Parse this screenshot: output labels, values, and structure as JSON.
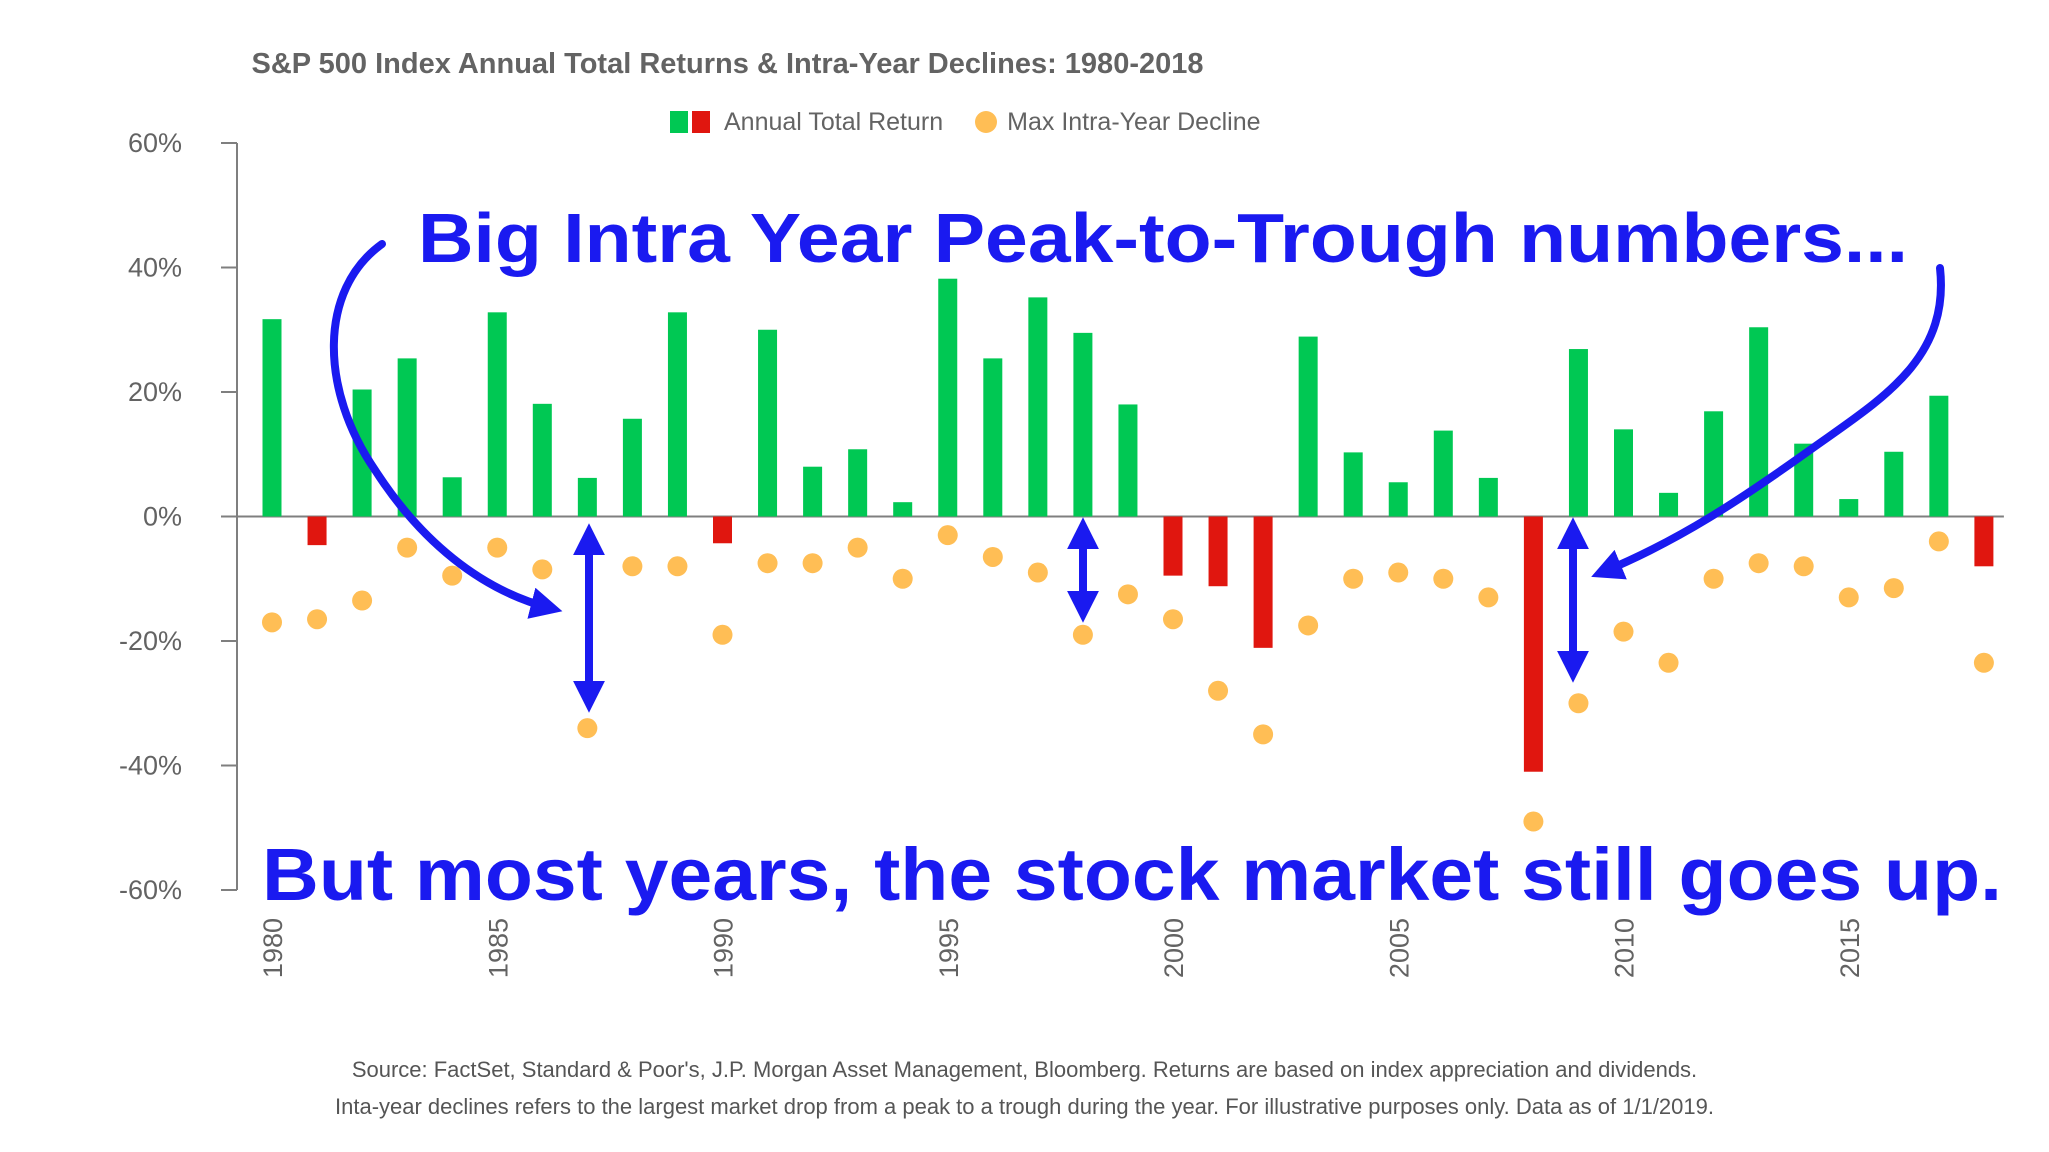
{
  "colors": {
    "positive_bar": "#00C853",
    "negative_bar": "#E0160F",
    "decline_dot": "#FFBE55",
    "annotation": "#1A1AF0",
    "axis": "#7F7F7F",
    "text": "#636363"
  },
  "annotations": {
    "top": "Big Intra Year Peak-to-Trough numbers...",
    "bottom": "But most years, the stock market still goes up."
  },
  "footer": {
    "line1": "Source: FactSet, Standard & Poor's, J.P. Morgan Asset Management, Bloomberg. Returns are based on index appreciation and dividends.",
    "line2": "Inta-year declines refers to the largest market drop from a peak to a trough during the year. For illustrative purposes only. Data as of 1/1/2019."
  },
  "chart_data": {
    "type": "bar",
    "title": "S&P 500 Index Annual Total Returns & Intra-Year Declines: 1980-2018",
    "legend": {
      "bar_label": "Annual Total Return",
      "dot_label": "Max Intra-Year Decline",
      "placement": "top-center"
    },
    "ylim": [
      -60,
      60
    ],
    "yticks": [
      60,
      40,
      20,
      0,
      -20,
      -40,
      -60
    ],
    "ytick_labels": [
      "60%",
      "40%",
      "20%",
      "0%",
      "-20%",
      "-40%",
      "-60%"
    ],
    "xtick_labels": [
      "1980",
      "1985",
      "1990",
      "1995",
      "2000",
      "2005",
      "2010",
      "2015"
    ],
    "grid": false,
    "categories": [
      "1980",
      "1981",
      "1982",
      "1983",
      "1984",
      "1985",
      "1986",
      "1987",
      "1988",
      "1989",
      "1990",
      "1991",
      "1992",
      "1993",
      "1994",
      "1995",
      "1996",
      "1997",
      "1998",
      "1999",
      "2000",
      "2001",
      "2002",
      "2003",
      "2004",
      "2005",
      "2006",
      "2007",
      "2008",
      "2009",
      "2010",
      "2011",
      "2012",
      "2013",
      "2014",
      "2015",
      "2016",
      "2017",
      "2018"
    ],
    "series": [
      {
        "name": "Annual Total Return",
        "type": "bar",
        "values": [
          31.7,
          -4.6,
          20.4,
          25.4,
          6.3,
          32.8,
          18.1,
          6.2,
          15.7,
          32.8,
          -4.3,
          30.0,
          8.0,
          10.8,
          2.3,
          38.2,
          25.4,
          35.2,
          29.5,
          18.0,
          -9.5,
          -11.2,
          -21.1,
          28.9,
          10.3,
          5.5,
          13.8,
          6.2,
          -41.0,
          26.9,
          14.0,
          3.8,
          16.9,
          30.4,
          11.7,
          2.8,
          10.4,
          19.4,
          -8.0
        ]
      },
      {
        "name": "Max Intra-Year Decline",
        "type": "scatter",
        "values": [
          -17,
          -16.5,
          -13.5,
          -5,
          -9.5,
          -5,
          -8.5,
          -34,
          -8,
          -8,
          -19,
          -7.5,
          -7.5,
          -5,
          -10,
          -3,
          -6.5,
          -9,
          -19,
          -12.5,
          -16.5,
          -28,
          -35,
          -17.5,
          -10,
          -9,
          -10,
          -13,
          -49,
          -30,
          -18.5,
          -23.5,
          -10,
          -7.5,
          -8,
          -13,
          -11.5,
          -4,
          -23.5
        ]
      }
    ]
  }
}
